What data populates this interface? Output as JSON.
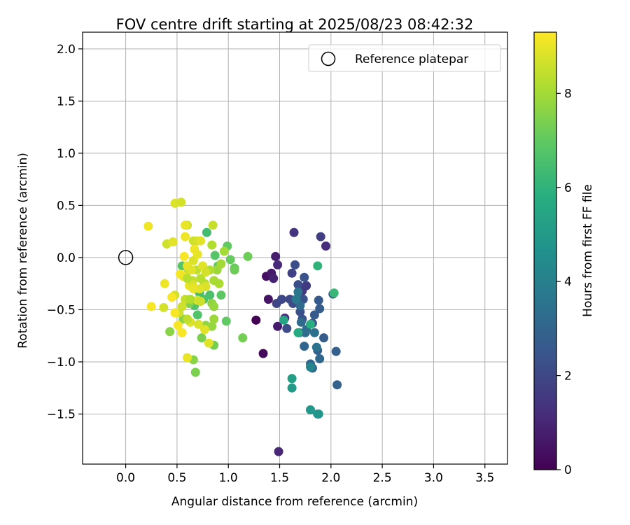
{
  "chart_data": {
    "type": "scatter",
    "title": "FOV centre drift starting at 2025/08/23 08:42:32",
    "xlabel": "Angular distance from reference (arcmin)",
    "ylabel": "Rotation from reference (arcmin)",
    "xlim": [
      -0.42,
      3.72
    ],
    "ylim": [
      -1.98,
      2.16
    ],
    "xticks": [
      0.0,
      0.5,
      1.0,
      1.5,
      2.0,
      2.5,
      3.0,
      3.5
    ],
    "xtick_labels": [
      "0.0",
      "0.5",
      "1.0",
      "1.5",
      "2.0",
      "2.5",
      "3.0",
      "3.5"
    ],
    "yticks": [
      -1.5,
      -1.0,
      -0.5,
      0.0,
      0.5,
      1.0,
      1.5,
      2.0
    ],
    "ytick_labels": [
      "−1.5",
      "−1.0",
      "−0.5",
      "0.0",
      "0.5",
      "1.0",
      "1.5",
      "2.0"
    ],
    "grid": true,
    "legend": {
      "placement": "upper-right",
      "entries": [
        "Reference platepar"
      ]
    },
    "colormap": "viridis",
    "colorbar": {
      "label": "Hours from first FF file",
      "range": [
        0,
        9.3
      ],
      "ticks": [
        0,
        2,
        4,
        6,
        8
      ],
      "tick_labels": [
        "0",
        "2",
        "4",
        "6",
        "8"
      ]
    },
    "reference": {
      "name": "Reference platepar",
      "x": 0.0,
      "y": 0.0
    },
    "points": [
      {
        "x": 1.27,
        "y": -0.6,
        "h": 0.0
      },
      {
        "x": 1.34,
        "y": -0.92,
        "h": 0.2
      },
      {
        "x": 1.37,
        "y": -0.18,
        "h": 0.4
      },
      {
        "x": 1.39,
        "y": -0.4,
        "h": 0.5
      },
      {
        "x": 1.42,
        "y": -0.15,
        "h": 0.6
      },
      {
        "x": 1.48,
        "y": -0.66,
        "h": 0.7
      },
      {
        "x": 1.46,
        "y": 0.01,
        "h": 0.8
      },
      {
        "x": 1.44,
        "y": -0.2,
        "h": 0.9
      },
      {
        "x": 1.49,
        "y": -1.86,
        "h": 1.0
      },
      {
        "x": 1.48,
        "y": -0.07,
        "h": 1.1
      },
      {
        "x": 1.95,
        "y": 0.11,
        "h": 1.2
      },
      {
        "x": 1.55,
        "y": -0.58,
        "h": 1.3
      },
      {
        "x": 1.64,
        "y": 0.24,
        "h": 1.4
      },
      {
        "x": 1.72,
        "y": -0.32,
        "h": 1.5
      },
      {
        "x": 1.76,
        "y": -0.27,
        "h": 1.6
      },
      {
        "x": 1.9,
        "y": 0.2,
        "h": 1.7
      },
      {
        "x": 1.62,
        "y": -0.15,
        "h": 1.8
      },
      {
        "x": 1.47,
        "y": -0.44,
        "h": 1.9
      },
      {
        "x": 1.52,
        "y": -0.4,
        "h": 2.0
      },
      {
        "x": 1.6,
        "y": -0.4,
        "h": 2.0
      },
      {
        "x": 1.63,
        "y": -0.44,
        "h": 2.1
      },
      {
        "x": 1.57,
        "y": -0.68,
        "h": 2.1
      },
      {
        "x": 1.65,
        "y": -0.07,
        "h": 2.2
      },
      {
        "x": 1.68,
        "y": -0.26,
        "h": 2.2
      },
      {
        "x": 1.7,
        "y": -0.52,
        "h": 2.3
      },
      {
        "x": 1.72,
        "y": -0.59,
        "h": 2.3
      },
      {
        "x": 1.73,
        "y": -0.4,
        "h": 2.4
      },
      {
        "x": 1.74,
        "y": -0.19,
        "h": 2.4
      },
      {
        "x": 1.69,
        "y": -0.72,
        "h": 2.5
      },
      {
        "x": 1.82,
        "y": -0.63,
        "h": 2.5
      },
      {
        "x": 1.84,
        "y": -0.55,
        "h": 2.6
      },
      {
        "x": 1.88,
        "y": -0.41,
        "h": 2.6
      },
      {
        "x": 1.89,
        "y": -0.49,
        "h": 2.7
      },
      {
        "x": 1.93,
        "y": -0.77,
        "h": 2.7
      },
      {
        "x": 1.87,
        "y": -0.89,
        "h": 2.8
      },
      {
        "x": 2.02,
        "y": -0.35,
        "h": 2.8
      },
      {
        "x": 2.05,
        "y": -0.9,
        "h": 2.9
      },
      {
        "x": 2.06,
        "y": -1.22,
        "h": 2.9
      },
      {
        "x": 1.74,
        "y": -0.85,
        "h": 3.0
      },
      {
        "x": 1.8,
        "y": -1.02,
        "h": 3.0
      },
      {
        "x": 1.82,
        "y": -1.06,
        "h": 3.1
      },
      {
        "x": 1.89,
        "y": -0.97,
        "h": 3.1
      },
      {
        "x": 1.7,
        "y": -0.46,
        "h": 3.2
      },
      {
        "x": 1.71,
        "y": -0.62,
        "h": 3.2
      },
      {
        "x": 1.75,
        "y": -0.72,
        "h": 3.3
      },
      {
        "x": 1.76,
        "y": -0.69,
        "h": 3.3
      },
      {
        "x": 1.84,
        "y": -0.72,
        "h": 3.4
      },
      {
        "x": 1.86,
        "y": -0.86,
        "h": 3.5
      },
      {
        "x": 1.68,
        "y": -0.33,
        "h": 3.6
      },
      {
        "x": 1.66,
        "y": -0.4,
        "h": 3.7
      },
      {
        "x": 1.8,
        "y": -1.05,
        "h": 4.2
      },
      {
        "x": 1.87,
        "y": -1.5,
        "h": 4.6
      },
      {
        "x": 1.88,
        "y": -1.5,
        "h": 4.8
      },
      {
        "x": 1.8,
        "y": -1.46,
        "h": 4.9
      },
      {
        "x": 1.62,
        "y": -1.25,
        "h": 5.0
      },
      {
        "x": 1.62,
        "y": -1.16,
        "h": 5.2
      },
      {
        "x": 1.54,
        "y": -0.6,
        "h": 5.4
      },
      {
        "x": 1.68,
        "y": -0.72,
        "h": 5.6
      },
      {
        "x": 1.8,
        "y": -0.64,
        "h": 5.8
      },
      {
        "x": 1.87,
        "y": -0.08,
        "h": 6.0
      },
      {
        "x": 2.03,
        "y": -0.34,
        "h": 6.2
      },
      {
        "x": 0.79,
        "y": 0.24,
        "h": 6.4
      },
      {
        "x": 0.72,
        "y": -0.34,
        "h": 6.5
      },
      {
        "x": 0.76,
        "y": -0.4,
        "h": 6.6
      },
      {
        "x": 0.82,
        "y": -0.36,
        "h": 6.6
      },
      {
        "x": 0.67,
        "y": -0.46,
        "h": 6.7
      },
      {
        "x": 0.7,
        "y": -0.55,
        "h": 6.7
      },
      {
        "x": 0.55,
        "y": -0.08,
        "h": 6.8
      },
      {
        "x": 0.87,
        "y": 0.02,
        "h": 6.8
      },
      {
        "x": 0.9,
        "y": -0.08,
        "h": 6.9
      },
      {
        "x": 0.93,
        "y": -0.36,
        "h": 6.9
      },
      {
        "x": 0.98,
        "y": -0.61,
        "h": 7.0
      },
      {
        "x": 0.99,
        "y": 0.11,
        "h": 7.0
      },
      {
        "x": 1.02,
        "y": -0.02,
        "h": 7.1
      },
      {
        "x": 1.06,
        "y": -0.1,
        "h": 7.1
      },
      {
        "x": 1.06,
        "y": -0.12,
        "h": 7.2
      },
      {
        "x": 1.19,
        "y": 0.01,
        "h": 7.2
      },
      {
        "x": 1.14,
        "y": -0.77,
        "h": 7.3
      },
      {
        "x": 0.86,
        "y": -0.84,
        "h": 7.3
      },
      {
        "x": 0.74,
        "y": -0.77,
        "h": 7.4
      },
      {
        "x": 0.68,
        "y": -1.1,
        "h": 7.4
      },
      {
        "x": 0.62,
        "y": -0.44,
        "h": 7.5
      },
      {
        "x": 0.56,
        "y": -0.59,
        "h": 7.5
      },
      {
        "x": 0.43,
        "y": -0.71,
        "h": 7.6
      },
      {
        "x": 0.66,
        "y": -0.98,
        "h": 7.6
      },
      {
        "x": 0.78,
        "y": -0.65,
        "h": 7.7
      },
      {
        "x": 0.84,
        "y": -0.44,
        "h": 7.7
      },
      {
        "x": 0.86,
        "y": -0.47,
        "h": 7.8
      },
      {
        "x": 0.84,
        "y": -0.66,
        "h": 7.8
      },
      {
        "x": 0.86,
        "y": -0.59,
        "h": 7.9
      },
      {
        "x": 0.89,
        "y": -0.12,
        "h": 7.9
      },
      {
        "x": 0.96,
        "y": 0.06,
        "h": 8.0
      },
      {
        "x": 0.93,
        "y": -0.06,
        "h": 8.0
      },
      {
        "x": 0.86,
        "y": -0.22,
        "h": 8.1
      },
      {
        "x": 0.91,
        "y": -0.25,
        "h": 8.1
      },
      {
        "x": 0.82,
        "y": -0.12,
        "h": 8.2
      },
      {
        "x": 0.84,
        "y": 0.12,
        "h": 8.2
      },
      {
        "x": 0.77,
        "y": -0.25,
        "h": 8.3
      },
      {
        "x": 0.73,
        "y": -0.2,
        "h": 8.3
      },
      {
        "x": 0.69,
        "y": -0.12,
        "h": 8.4
      },
      {
        "x": 0.65,
        "y": -0.22,
        "h": 8.4
      },
      {
        "x": 0.61,
        "y": -0.12,
        "h": 8.5
      },
      {
        "x": 0.58,
        "y": -0.4,
        "h": 8.5
      },
      {
        "x": 0.55,
        "y": -0.47,
        "h": 8.6
      },
      {
        "x": 0.52,
        "y": -0.53,
        "h": 8.6
      },
      {
        "x": 0.37,
        "y": -0.48,
        "h": 8.7
      },
      {
        "x": 0.48,
        "y": -0.36,
        "h": 8.7
      },
      {
        "x": 0.63,
        "y": -0.62,
        "h": 8.8
      },
      {
        "x": 0.71,
        "y": -0.64,
        "h": 8.8
      },
      {
        "x": 0.77,
        "y": -0.69,
        "h": 8.9
      },
      {
        "x": 0.81,
        "y": -0.82,
        "h": 8.9
      },
      {
        "x": 0.6,
        "y": -0.96,
        "h": 9.0
      },
      {
        "x": 0.4,
        "y": 0.13,
        "h": 8.6
      },
      {
        "x": 0.46,
        "y": 0.15,
        "h": 8.9
      },
      {
        "x": 0.48,
        "y": 0.52,
        "h": 8.8
      },
      {
        "x": 0.54,
        "y": 0.53,
        "h": 8.7
      },
      {
        "x": 0.6,
        "y": 0.31,
        "h": 8.6
      },
      {
        "x": 0.58,
        "y": 0.31,
        "h": 9.0
      },
      {
        "x": 0.85,
        "y": 0.31,
        "h": 8.5
      },
      {
        "x": 0.66,
        "y": 0.16,
        "h": 8.6
      },
      {
        "x": 0.7,
        "y": 0.16,
        "h": 8.7
      },
      {
        "x": 0.73,
        "y": 0.16,
        "h": 8.9
      },
      {
        "x": 0.58,
        "y": 0.2,
        "h": 9.1
      },
      {
        "x": 0.22,
        "y": 0.3,
        "h": 9.1
      },
      {
        "x": 0.25,
        "y": -0.47,
        "h": 9.2
      },
      {
        "x": 0.38,
        "y": -0.25,
        "h": 9.1
      },
      {
        "x": 0.45,
        "y": -0.38,
        "h": 9.2
      },
      {
        "x": 0.48,
        "y": -0.53,
        "h": 9.2
      },
      {
        "x": 0.51,
        "y": -0.65,
        "h": 9.2
      },
      {
        "x": 0.55,
        "y": -0.72,
        "h": 9.2
      },
      {
        "x": 0.53,
        "y": -0.16,
        "h": 9.2
      },
      {
        "x": 0.56,
        "y": -0.18,
        "h": 9.1
      },
      {
        "x": 0.62,
        "y": -0.27,
        "h": 9.0
      },
      {
        "x": 0.65,
        "y": -0.26,
        "h": 8.8
      },
      {
        "x": 0.57,
        "y": 0.01,
        "h": 9.2
      },
      {
        "x": 0.6,
        "y": -0.08,
        "h": 9.0
      },
      {
        "x": 0.64,
        "y": -0.12,
        "h": 8.9
      },
      {
        "x": 0.66,
        "y": -0.03,
        "h": 8.8
      },
      {
        "x": 0.67,
        "y": 0.08,
        "h": 9.1
      },
      {
        "x": 0.7,
        "y": 0.03,
        "h": 9.0
      },
      {
        "x": 0.75,
        "y": -0.08,
        "h": 8.9
      },
      {
        "x": 0.78,
        "y": -0.14,
        "h": 8.7
      },
      {
        "x": 0.78,
        "y": -0.28,
        "h": 8.8
      },
      {
        "x": 0.72,
        "y": -0.3,
        "h": 8.9
      },
      {
        "x": 0.66,
        "y": -0.3,
        "h": 9.0
      },
      {
        "x": 0.7,
        "y": -0.41,
        "h": 8.8
      },
      {
        "x": 0.73,
        "y": -0.42,
        "h": 8.6
      },
      {
        "x": 0.6,
        "y": -0.2,
        "h": 8.3
      },
      {
        "x": 0.63,
        "y": -0.4,
        "h": 8.2
      },
      {
        "x": 0.6,
        "y": -0.59,
        "h": 8.4
      }
    ]
  }
}
